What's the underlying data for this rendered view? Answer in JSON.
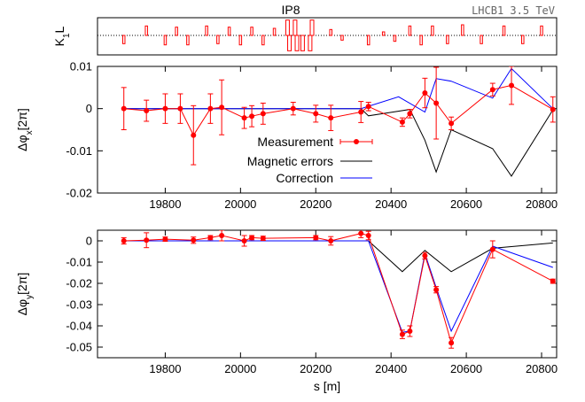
{
  "chart_data": [
    {
      "type": "bar",
      "panel": "k1l",
      "ylabel": "K1L",
      "annotations": [
        "IP8",
        "LHCB1 3.5 TeV"
      ],
      "grid": false,
      "zero_line_style": "dotted",
      "bars": [
        {
          "s": 19690,
          "k": -0.7
        },
        {
          "s": 19750,
          "k": 0.8
        },
        {
          "s": 19800,
          "k": -0.8
        },
        {
          "s": 19830,
          "k": 0.7
        },
        {
          "s": 19860,
          "k": -0.8
        },
        {
          "s": 19910,
          "k": 0.8
        },
        {
          "s": 19940,
          "k": -0.7
        },
        {
          "s": 19970,
          "k": 0.7
        },
        {
          "s": 20000,
          "k": -0.8
        },
        {
          "s": 20030,
          "k": 0.7
        },
        {
          "s": 20060,
          "k": -0.8
        },
        {
          "s": 20090,
          "k": 0.6
        },
        {
          "s": 20125,
          "k": 1.3
        },
        {
          "s": 20130,
          "k": -1.3
        },
        {
          "s": 20145,
          "k": 1.3
        },
        {
          "s": 20150,
          "k": -1.3
        },
        {
          "s": 20165,
          "k": -1.3
        },
        {
          "s": 20185,
          "k": -1.3
        },
        {
          "s": 20190,
          "k": 1.3
        },
        {
          "s": 20240,
          "k": 0.5
        },
        {
          "s": 20270,
          "k": -0.4
        },
        {
          "s": 20340,
          "k": -0.8
        },
        {
          "s": 20380,
          "k": 0.3
        },
        {
          "s": 20410,
          "k": -0.5
        },
        {
          "s": 20450,
          "k": 0.8
        },
        {
          "s": 20480,
          "k": -0.8
        },
        {
          "s": 20510,
          "k": 0.8
        },
        {
          "s": 20550,
          "k": -0.7
        },
        {
          "s": 20590,
          "k": 0.9
        },
        {
          "s": 20640,
          "k": -0.7
        },
        {
          "s": 20700,
          "k": 0.8
        },
        {
          "s": 20750,
          "k": -0.7
        },
        {
          "s": 20800,
          "k": 0.8
        }
      ]
    },
    {
      "type": "line",
      "panel": "x",
      "ylabel": "Δφx[2π]",
      "ylim": [
        -0.02,
        0.01
      ],
      "yticks": [
        0.01,
        0,
        -0.01,
        -0.02
      ],
      "ytick_labels": [
        "0.01",
        "0",
        "-0.01",
        "-0.02"
      ],
      "grid": false,
      "legend_position": "middle",
      "series": [
        {
          "name": "Measurement",
          "color": "#ff0000",
          "style": "points-errorbars-line",
          "points": [
            {
              "x": 19690,
              "y": 0.0,
              "err": 0.005
            },
            {
              "x": 19750,
              "y": -0.0005,
              "err": 0.0025
            },
            {
              "x": 19800,
              "y": 0.0,
              "err": 0.0035
            },
            {
              "x": 19840,
              "y": 0.0,
              "err": 0.0035
            },
            {
              "x": 19875,
              "y": -0.0063,
              "err": 0.007
            },
            {
              "x": 19920,
              "y": 0.0,
              "err": 0.0035
            },
            {
              "x": 19950,
              "y": 0.0003,
              "err": 0.0065
            },
            {
              "x": 20010,
              "y": -0.0022,
              "err": 0.0025
            },
            {
              "x": 20030,
              "y": -0.0018,
              "err": 0.0025
            },
            {
              "x": 20060,
              "y": -0.0012,
              "err": 0.0025
            },
            {
              "x": 20140,
              "y": 0.0,
              "err": 0.0015
            },
            {
              "x": 20200,
              "y": -0.0012,
              "err": 0.002
            },
            {
              "x": 20240,
              "y": -0.0022,
              "err": 0.003
            },
            {
              "x": 20320,
              "y": -0.0008,
              "err": 0.0025
            },
            {
              "x": 20340,
              "y": 0.0005,
              "err": 0.001
            },
            {
              "x": 20430,
              "y": -0.0032,
              "err": 0.001
            },
            {
              "x": 20450,
              "y": -0.0012,
              "err": 0.001
            },
            {
              "x": 20490,
              "y": 0.0037,
              "err": 0.0035
            },
            {
              "x": 20520,
              "y": 0.0013,
              "err": 0.0085
            },
            {
              "x": 20560,
              "y": -0.0035,
              "err": 0.0015
            },
            {
              "x": 20670,
              "y": 0.0045,
              "err": 0.0015
            },
            {
              "x": 20720,
              "y": 0.0055,
              "err": 0.0045
            },
            {
              "x": 20830,
              "y": -0.0002,
              "err": 0.003
            }
          ]
        },
        {
          "name": "Magnetic errors",
          "color": "#000000",
          "style": "line",
          "points": [
            [
              19690,
              0.0
            ],
            [
              20320,
              0.0
            ],
            [
              20340,
              -0.0017
            ],
            [
              20450,
              -0.0002
            ],
            [
              20490,
              -0.0075
            ],
            [
              20520,
              -0.015
            ],
            [
              20560,
              -0.005
            ],
            [
              20670,
              -0.0095
            ],
            [
              20720,
              -0.016
            ],
            [
              20830,
              -0.0003
            ]
          ]
        },
        {
          "name": "Correction",
          "color": "#0000ff",
          "style": "line",
          "points": [
            [
              19690,
              0.0
            ],
            [
              20320,
              0.0
            ],
            [
              20420,
              0.0028
            ],
            [
              20490,
              -0.0008
            ],
            [
              20520,
              0.0071
            ],
            [
              20560,
              0.0065
            ],
            [
              20670,
              0.0025
            ],
            [
              20720,
              0.0095
            ],
            [
              20830,
              0.0
            ]
          ]
        }
      ]
    },
    {
      "type": "line",
      "panel": "y",
      "ylabel": "Δφy[2π]",
      "xlabel": "s [m]",
      "ylim": [
        -0.055,
        0.005
      ],
      "yticks": [
        0,
        -0.01,
        -0.02,
        -0.03,
        -0.04,
        -0.05
      ],
      "ytick_labels": [
        "0",
        "-0.01",
        "-0.02",
        "-0.03",
        "-0.04",
        "-0.05"
      ],
      "xticks": [
        19800,
        20000,
        20200,
        20400,
        20600,
        20800
      ],
      "xtick_labels": [
        "19800",
        "20000",
        "20200",
        "20400",
        "20600",
        "20800"
      ],
      "xlim": [
        19620,
        20840
      ],
      "grid": false,
      "series": [
        {
          "name": "Measurement",
          "color": "#ff0000",
          "style": "points-errorbars-line",
          "points": [
            {
              "x": 19690,
              "y": 0.0,
              "err": 0.0015
            },
            {
              "x": 19750,
              "y": 0.0003,
              "err": 0.0035
            },
            {
              "x": 19800,
              "y": 0.0008,
              "err": 0.001
            },
            {
              "x": 19875,
              "y": 0.0003,
              "err": 0.0015
            },
            {
              "x": 19920,
              "y": 0.0015,
              "err": 0.001
            },
            {
              "x": 19950,
              "y": 0.0025,
              "err": 0.0025
            },
            {
              "x": 20010,
              "y": 0.0,
              "err": 0.0025
            },
            {
              "x": 20030,
              "y": 0.0015,
              "err": 0.001
            },
            {
              "x": 20060,
              "y": 0.0012,
              "err": 0.001
            },
            {
              "x": 20200,
              "y": 0.0015,
              "err": 0.001
            },
            {
              "x": 20240,
              "y": 0.0,
              "err": 0.002
            },
            {
              "x": 20320,
              "y": 0.0035,
              "err": 0.002
            },
            {
              "x": 20340,
              "y": 0.0025,
              "err": 0.002
            },
            {
              "x": 20430,
              "y": -0.044,
              "err": 0.002
            },
            {
              "x": 20450,
              "y": -0.0425,
              "err": 0.0025
            },
            {
              "x": 20490,
              "y": -0.007,
              "err": 0.0015
            },
            {
              "x": 20520,
              "y": -0.023,
              "err": 0.0015
            },
            {
              "x": 20560,
              "y": -0.048,
              "err": 0.0025
            },
            {
              "x": 20670,
              "y": -0.004,
              "err": 0.004
            },
            {
              "x": 20830,
              "y": -0.019,
              "err": 0.001
            }
          ]
        },
        {
          "name": "Magnetic errors",
          "color": "#000000",
          "style": "line",
          "points": [
            [
              19690,
              0.0
            ],
            [
              20320,
              0.0
            ],
            [
              20340,
              0.0
            ],
            [
              20430,
              -0.0145
            ],
            [
              20490,
              -0.0045
            ],
            [
              20560,
              -0.0145
            ],
            [
              20670,
              -0.0035
            ],
            [
              20830,
              -0.001
            ]
          ]
        },
        {
          "name": "Correction",
          "color": "#0000ff",
          "style": "line",
          "points": [
            [
              19690,
              0.0
            ],
            [
              20340,
              0.0
            ],
            [
              20430,
              -0.043
            ],
            [
              20450,
              -0.0425
            ],
            [
              20490,
              -0.006
            ],
            [
              20520,
              -0.022
            ],
            [
              20560,
              -0.0425
            ],
            [
              20670,
              -0.0025
            ],
            [
              20830,
              -0.0125
            ]
          ]
        }
      ]
    }
  ]
}
